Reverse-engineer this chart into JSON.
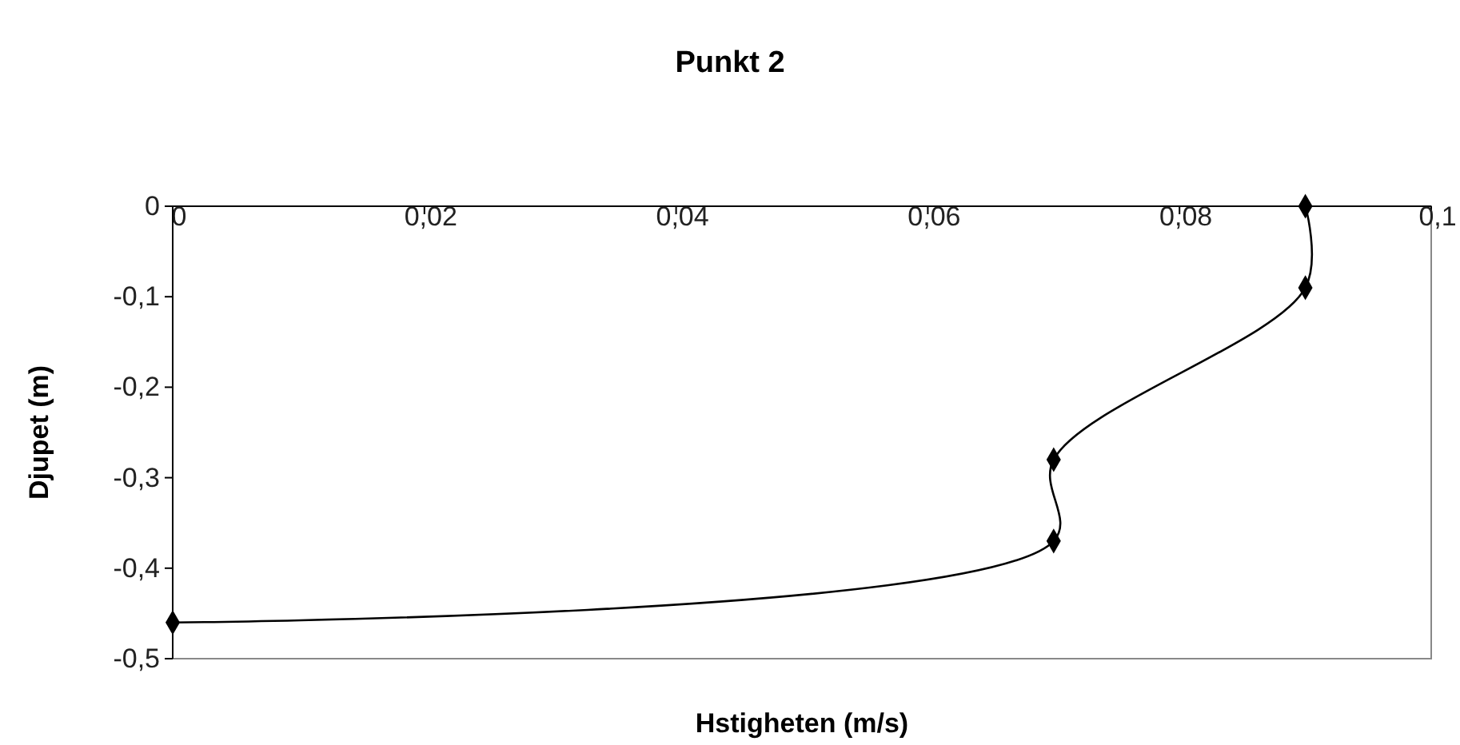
{
  "chart_data": {
    "type": "line",
    "title": "Punkt 2",
    "xlabel": "Hstigheten (m/s)",
    "ylabel": "Djupet (m)",
    "x": [
      0.09,
      0.09,
      0.07,
      0.07,
      0
    ],
    "values": [
      0,
      -0.09,
      -0.28,
      -0.37,
      -0.46
    ],
    "color": "#000000",
    "marker": "diamond",
    "line_style": "solid",
    "grid": false,
    "xlim": [
      0,
      0.1
    ],
    "xticks": [
      0,
      {
        "value": 0.02,
        "label": "0,02"
      },
      {
        "value": 0.04,
        "label": "0,04"
      },
      {
        "value": 0.06,
        "label": "0,06"
      },
      {
        "value": 0.08,
        "label": "0,08"
      },
      {
        "value": 0.1,
        "label": "0,1"
      }
    ],
    "ylim": [
      -0.5,
      0
    ],
    "yticks": [
      {
        "value": -0.5,
        "label": "-0,5"
      },
      {
        "value": -0.4,
        "label": "-0,4"
      },
      {
        "value": -0.3,
        "label": "-0,3"
      },
      {
        "value": -0.2,
        "label": "-0,2"
      },
      {
        "value": -0.1,
        "label": "-0,1"
      },
      0
    ]
  }
}
